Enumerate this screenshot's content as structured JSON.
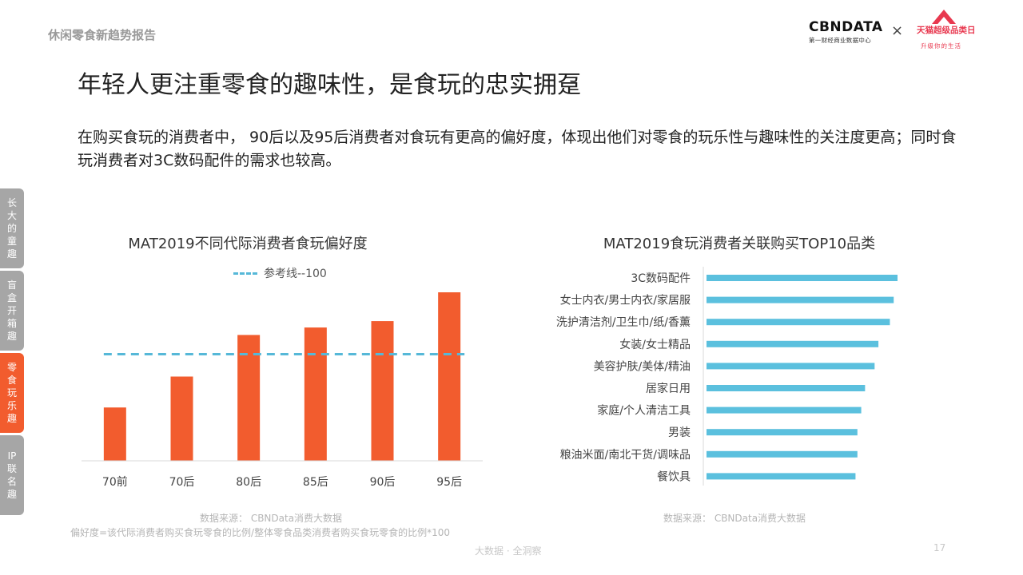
{
  "header": {
    "report_label": "休闲零食新趋势报告",
    "logo_cbn": "CBNDATA",
    "logo_cbn_sub": "第一财经商业数据中心",
    "logo_separator": "×",
    "logo_tmall": "天猫超级品类日",
    "logo_tmall_slogan": "升级你的生活"
  },
  "title": "年轻人更注重零食的趣味性，是食玩的忠实拥趸",
  "description": "在购买食玩的消费者中， 90后以及95后消费者对食玩有更高的偏好度，体现出他们对零食的玩乐性与趣味性的关注度更高；同时食玩消费者对3C数码配件的需求也较高。",
  "side_nav": [
    {
      "label": "长大的童趣",
      "active": false
    },
    {
      "label": "盲盒开箱趣",
      "active": false
    },
    {
      "label": "零食玩乐趣",
      "active": true
    },
    {
      "label": "IP联名趣",
      "active": false
    }
  ],
  "chart_data": [
    {
      "type": "bar",
      "title": "MAT2019不同代际消费者食玩偏好度",
      "legend": [
        "参考线--100"
      ],
      "categories": [
        "70前",
        "70后",
        "80后",
        "85后",
        "90后",
        "95后"
      ],
      "values": [
        50,
        79,
        118,
        125,
        131,
        158
      ],
      "reference_line": 100,
      "ylim": [
        0,
        170
      ],
      "color": "#f25c2e",
      "reference_color": "#56b8d8",
      "source": "数据来源：  CBNData消费大数据",
      "note": "偏好度=该代际消费者购买食玩零食的比例/整体零食品类消费者购买食玩零食的比例*100"
    },
    {
      "type": "bar",
      "orientation": "horizontal",
      "title": "MAT2019食玩消费者关联购买TOP10品类",
      "categories": [
        "3C数码配件",
        "女士内衣/男士内衣/家居服",
        "洗护清洁剂/卫生巾/纸/香薰",
        "女装/女士精品",
        "美容护肤/美体/精油",
        "居家日用",
        "家庭/个人清洁工具",
        "男装",
        "粮油米面/南北干货/调味品",
        "餐饮具"
      ],
      "values": [
        100,
        98,
        96,
        90,
        88,
        83,
        81,
        79,
        79,
        78
      ],
      "xlim": [
        0,
        100
      ],
      "color": "#5bc0de",
      "source": "数据来源：  CBNData消费大数据"
    }
  ],
  "footer": {
    "tag": "大数据 · 全洞察",
    "page_number": "17"
  }
}
